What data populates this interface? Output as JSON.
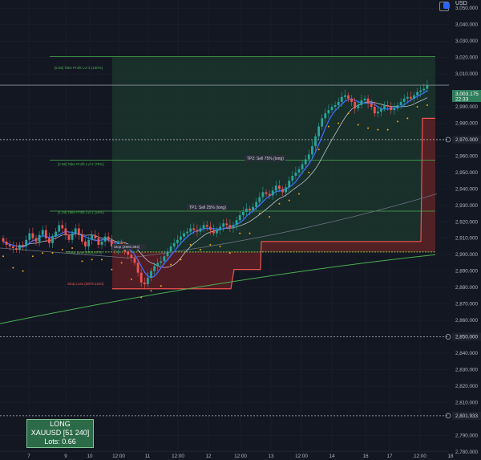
{
  "header": {
    "currency": "USD"
  },
  "price_axis": {
    "ticks": [
      "3,050.000",
      "3,040.000",
      "3,030.000",
      "3,020.000",
      "3,010.000",
      "2,990.000",
      "2,980.000",
      "2,960.000",
      "2,950.000",
      "2,940.000",
      "2,930.000",
      "2,920.000",
      "2,910.000",
      "2,900.000",
      "2,890.000",
      "2,880.000",
      "2,870.000",
      "2,860.000",
      "2,850.000",
      "2,840.000",
      "2,830.000",
      "2,820.000",
      "2,810.000",
      "2,790.000",
      "2,780.000"
    ],
    "marked": [
      "2,970.000",
      "2,850.000",
      "2,801.933"
    ],
    "current": {
      "price": "3,003.175",
      "countdown": "22:33"
    }
  },
  "time_axis": {
    "labels": [
      "7",
      "9",
      "10",
      "12:00",
      "11",
      "12:00",
      "12",
      "12:00",
      "13",
      "12:00",
      "14",
      "16",
      "17",
      "12:00",
      "18"
    ]
  },
  "levels": {
    "tp3": "[5.86] Take Profit Lvl 3 (100%)",
    "tp2": "[2.86] Take Profit Lvl 2 (75%)",
    "tp1": "[1.29] Take Profit Lvl 1 (25%)",
    "entry": "Entry Line (2901.573)",
    "stop": "Stop Loss (2879.2234)",
    "entry_tag": "Stop (2900.394)"
  },
  "tags": {
    "tp1": "TP1: Sell 25% (long)",
    "tp2": "TP2: Sell 75% (long)"
  },
  "info_box": {
    "side": "LONG",
    "symbol": "XAUUSD [51 240]",
    "lots": "Lots: 0.66"
  },
  "colors": {
    "up": "#26a69a",
    "down": "#ef5350",
    "ma_blue": "#3d6bff",
    "ma_white": "#d1d4dc",
    "sar": "#f7a21b",
    "tp_line": "#4caf50"
  },
  "chart_data": {
    "type": "candlestick",
    "ylim": [
      2775,
      3055
    ],
    "levels": {
      "tp3": 3020.5,
      "tp2": 2957.5,
      "tp1": 2926.5,
      "entry": 2901.6,
      "stop": 2879.2,
      "price_line": 3003.175,
      "marked_a": 2970,
      "marked_b": 2850
    },
    "close": [
      2908,
      2906,
      2905,
      2904,
      2903,
      2906,
      2905,
      2909,
      2913,
      2910,
      2908,
      2912,
      2915,
      2910,
      2907,
      2911,
      2914,
      2918,
      2916,
      2912,
      2909,
      2913,
      2916,
      2912,
      2908,
      2905,
      2909,
      2912,
      2910,
      2906,
      2908,
      2911,
      2909,
      2905,
      2903,
      2907,
      2905,
      2902,
      2900,
      2898,
      2895,
      2889,
      2883,
      2882,
      2886,
      2890,
      2893,
      2895,
      2896,
      2899,
      2902,
      2905,
      2907,
      2909,
      2911,
      2913,
      2914,
      2916,
      2915,
      2914,
      2916,
      2918,
      2917,
      2915,
      2913,
      2915,
      2917,
      2919,
      2918,
      2916,
      2918,
      2921,
      2924,
      2926,
      2928,
      2927,
      2929,
      2932,
      2935,
      2938,
      2937,
      2936,
      2939,
      2942,
      2940,
      2938,
      2941,
      2945,
      2948,
      2950,
      2952,
      2955,
      2958,
      2961,
      2966,
      2972,
      2978,
      2983,
      2986,
      2988,
      2990,
      2991,
      2993,
      2996,
      2997,
      2995,
      2993,
      2989,
      2991,
      2994,
      2995,
      2992,
      2990,
      2986,
      2987,
      2989,
      2991,
      2990,
      2988,
      2989,
      2991,
      2993,
      2995,
      2996,
      2995,
      2997,
      2999,
      3000,
      3001,
      3003
    ]
  }
}
